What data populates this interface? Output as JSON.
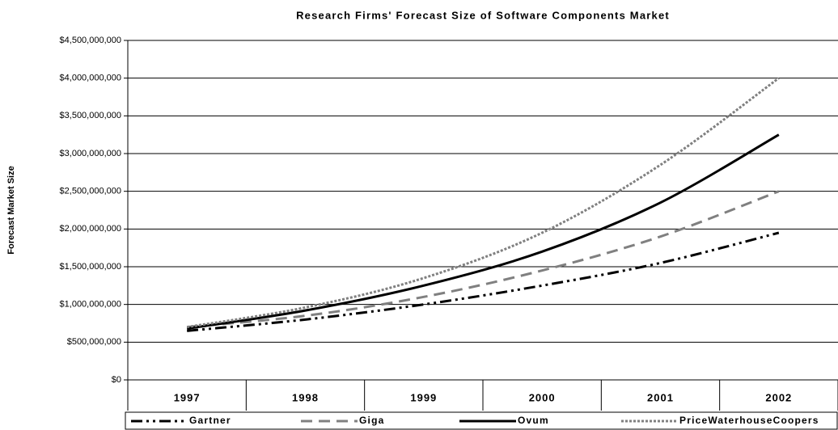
{
  "chart_data": {
    "type": "line",
    "title": "Research Firms' Forecast Size of Software Components Market",
    "y_label": "Forecast Market Size",
    "categories": [
      "1997",
      "1998",
      "1999",
      "2000",
      "2001",
      "2002"
    ],
    "series": [
      {
        "name": "Gartner",
        "color": "#000000",
        "values": [
          650000000,
          800000000,
          1000000000,
          1250000000,
          1550000000,
          1950000000
        ]
      },
      {
        "name": "Giga",
        "color": "#808080",
        "values": [
          700000000,
          850000000,
          1100000000,
          1450000000,
          1900000000,
          2500000000
        ]
      },
      {
        "name": "Ovum",
        "color": "#000000",
        "values": [
          680000000,
          920000000,
          1250000000,
          1700000000,
          2350000000,
          3250000000
        ]
      },
      {
        "name": "PriceWaterhouseCoopers",
        "color": "#808080",
        "values": [
          700000000,
          960000000,
          1350000000,
          1950000000,
          2850000000,
          4000000000
        ]
      }
    ],
    "ylim": [
      0,
      4500000000
    ],
    "yticks": [
      {
        "value": 0,
        "label": "$0"
      },
      {
        "value": 500000000,
        "label": "$500,000,000"
      },
      {
        "value": 1000000000,
        "label": "$1,000,000,000"
      },
      {
        "value": 1500000000,
        "label": "$1,500,000,000"
      },
      {
        "value": 2000000000,
        "label": "$2,000,000,000"
      },
      {
        "value": 2500000000,
        "label": "$2,500,000,000"
      },
      {
        "value": 3000000000,
        "label": "$3,000,000,000"
      },
      {
        "value": 3500000000,
        "label": "$3,500,000,000"
      },
      {
        "value": 4000000000,
        "label": "$4,000,000,000"
      },
      {
        "value": 4500000000,
        "label": "$4,500,000,000"
      }
    ],
    "grid": true,
    "legend": "bottom"
  }
}
